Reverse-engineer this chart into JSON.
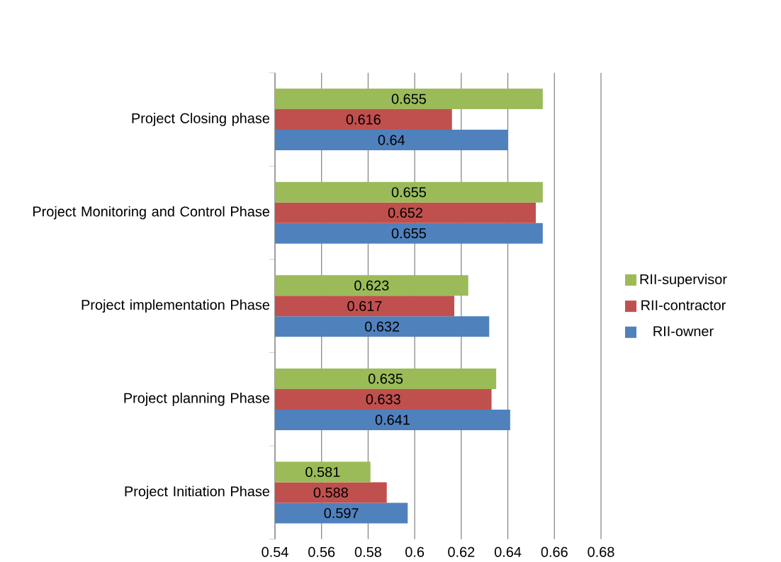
{
  "chart_data": {
    "type": "bar",
    "orientation": "horizontal",
    "categories": [
      "Project Closing phase",
      "Project Monitoring and Control Phase",
      "Project implementation Phase",
      "Project planning Phase",
      "Project Initiation Phase"
    ],
    "series": [
      {
        "name": "RII-supervisor",
        "color": "#9bbb59",
        "values": [
          0.655,
          0.655,
          0.623,
          0.635,
          0.581
        ]
      },
      {
        "name": "RII-contractor",
        "color": "#c0504d",
        "values": [
          0.616,
          0.652,
          0.617,
          0.633,
          0.588
        ]
      },
      {
        "name": "RII-owner",
        "color": "#4f81bd",
        "values": [
          0.64,
          0.655,
          0.632,
          0.641,
          0.597
        ]
      }
    ],
    "xlim": [
      0.54,
      0.68
    ],
    "xticks": [
      0.54,
      0.56,
      0.58,
      0.6,
      0.62,
      0.64,
      0.66,
      0.68
    ],
    "grid": "x",
    "legend": "right",
    "data_labels": true
  }
}
